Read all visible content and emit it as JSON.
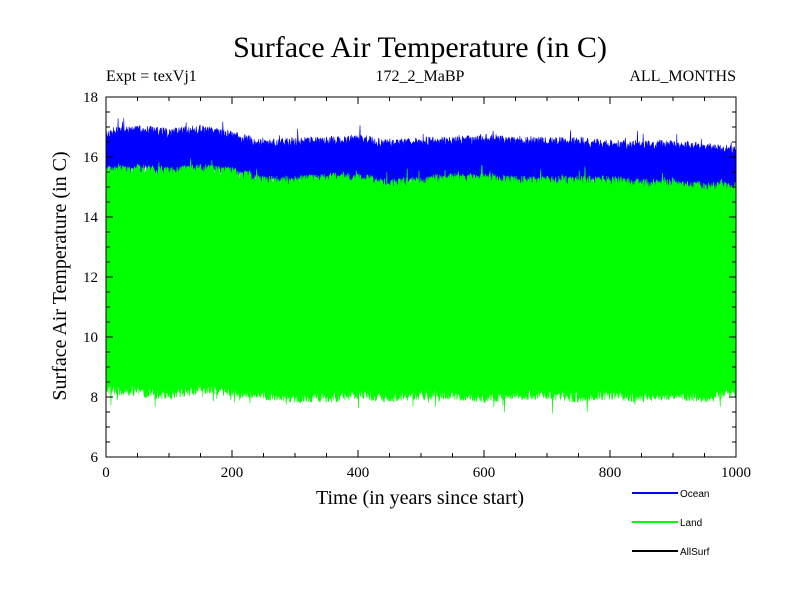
{
  "chart_data": {
    "type": "area",
    "title": "Surface Air Temperature (in C)",
    "experiment_label": "Expt = texVj1",
    "run_label": "172_2_MaBP",
    "months_label": "ALL_MONTHS",
    "xlabel": "Time (in years since start)",
    "ylabel": "Surface Air Temperature (in C)",
    "xlim": [
      0,
      1000
    ],
    "ylim": [
      6,
      18
    ],
    "x_ticks": [
      0,
      200,
      400,
      600,
      800,
      1000
    ],
    "y_ticks": [
      6,
      8,
      10,
      12,
      14,
      16,
      18
    ],
    "grid": false,
    "legend_position": "bottom-right, below plot",
    "series": [
      {
        "name": "Ocean",
        "color": "#0000ff",
        "x": [
          0,
          50,
          100,
          150,
          200,
          250,
          300,
          350,
          400,
          450,
          500,
          550,
          600,
          650,
          700,
          750,
          800,
          850,
          900,
          950,
          1000
        ],
        "upper": [
          16.8,
          16.9,
          16.8,
          16.9,
          16.7,
          16.4,
          16.5,
          16.5,
          16.6,
          16.4,
          16.5,
          16.5,
          16.6,
          16.5,
          16.5,
          16.5,
          16.4,
          16.4,
          16.4,
          16.3,
          16.2
        ],
        "lower": [
          15.6,
          15.6,
          15.5,
          15.6,
          15.5,
          15.2,
          15.2,
          15.3,
          15.3,
          15.1,
          15.2,
          15.3,
          15.3,
          15.2,
          15.2,
          15.2,
          15.2,
          15.1,
          15.1,
          15.0,
          15.0
        ]
      },
      {
        "name": "Land",
        "color": "#00ff00",
        "x": [
          0,
          50,
          100,
          150,
          200,
          250,
          300,
          350,
          400,
          450,
          500,
          550,
          600,
          650,
          700,
          750,
          800,
          850,
          900,
          950,
          1000
        ],
        "upper": [
          15.5,
          15.6,
          15.5,
          15.6,
          15.5,
          15.2,
          15.2,
          15.3,
          15.3,
          15.1,
          15.2,
          15.3,
          15.3,
          15.2,
          15.2,
          15.2,
          15.2,
          15.1,
          15.1,
          15.0,
          15.0
        ],
        "lower": [
          8.3,
          8.2,
          8.1,
          8.3,
          8.2,
          8.1,
          8.0,
          8.0,
          8.1,
          8.0,
          8.1,
          8.1,
          8.0,
          8.1,
          8.1,
          8.0,
          8.1,
          8.0,
          8.1,
          8.0,
          8.2
        ]
      },
      {
        "name": "AllSurf",
        "color": "#000000",
        "x": [],
        "upper": [],
        "lower": []
      }
    ]
  }
}
